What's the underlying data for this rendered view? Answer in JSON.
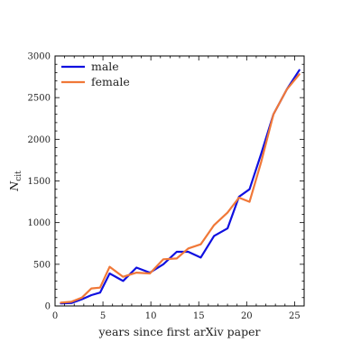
{
  "chart_data": {
    "type": "line",
    "xlabel": "years since first arXiv paper",
    "ylabel": "N",
    "ylabel_subscript": "cit",
    "xlim": [
      0,
      26
    ],
    "ylim": [
      0,
      3000
    ],
    "xticks": [
      0,
      5,
      10,
      15,
      20,
      25
    ],
    "yticks": [
      0,
      500,
      1000,
      1500,
      2000,
      2500,
      3000
    ],
    "grid": false,
    "legend_position": "top-left",
    "series": [
      {
        "name": "male",
        "color": "#1010e0",
        "x": [
          0.6,
          1.7,
          2.8,
          3.8,
          4.7,
          5.7,
          7.1,
          8.5,
          9.9,
          11.3,
          12.7,
          13.9,
          15.2,
          16.6,
          18.0,
          19.2,
          20.3,
          21.5,
          22.8,
          24.2,
          25.5
        ],
        "y": [
          30,
          35,
          80,
          130,
          160,
          390,
          300,
          460,
          400,
          500,
          650,
          650,
          580,
          840,
          930,
          1310,
          1400,
          1820,
          2300,
          2600,
          2830
        ]
      },
      {
        "name": "female",
        "color": "#f07838",
        "x": [
          0.6,
          1.7,
          2.8,
          3.8,
          4.7,
          5.7,
          7.1,
          8.5,
          9.9,
          11.3,
          12.7,
          13.9,
          15.2,
          16.6,
          18.0,
          19.2,
          20.3,
          21.5,
          22.8,
          24.2,
          25.5
        ],
        "y": [
          40,
          50,
          100,
          210,
          220,
          470,
          350,
          400,
          390,
          560,
          570,
          690,
          740,
          970,
          1120,
          1300,
          1250,
          1720,
          2300,
          2600,
          2780
        ]
      }
    ]
  }
}
